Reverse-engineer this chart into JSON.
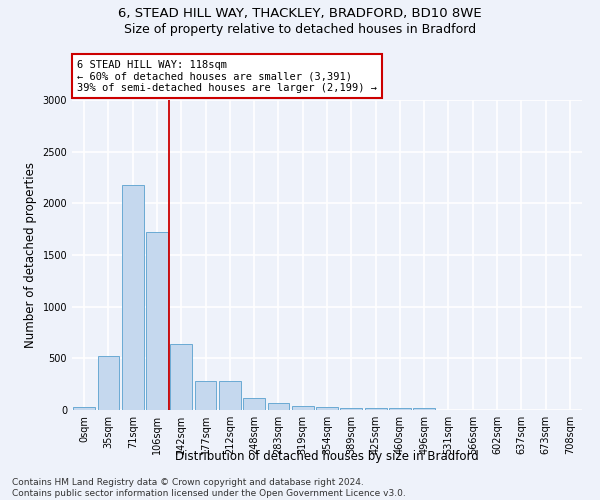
{
  "title_line1": "6, STEAD HILL WAY, THACKLEY, BRADFORD, BD10 8WE",
  "title_line2": "Size of property relative to detached houses in Bradford",
  "xlabel": "Distribution of detached houses by size in Bradford",
  "ylabel": "Number of detached properties",
  "categories": [
    "0sqm",
    "35sqm",
    "71sqm",
    "106sqm",
    "142sqm",
    "177sqm",
    "212sqm",
    "248sqm",
    "283sqm",
    "319sqm",
    "354sqm",
    "389sqm",
    "425sqm",
    "460sqm",
    "496sqm",
    "531sqm",
    "566sqm",
    "602sqm",
    "637sqm",
    "673sqm",
    "708sqm"
  ],
  "values": [
    30,
    520,
    2175,
    1720,
    640,
    280,
    280,
    120,
    70,
    35,
    25,
    20,
    20,
    20,
    20,
    0,
    0,
    0,
    0,
    0,
    0
  ],
  "bar_color": "#c5d8ee",
  "bar_edge_color": "#6aaad4",
  "ylim": [
    0,
    3000
  ],
  "yticks": [
    0,
    500,
    1000,
    1500,
    2000,
    2500,
    3000
  ],
  "vline_color": "#cc0000",
  "annotation_text": "6 STEAD HILL WAY: 118sqm\n← 60% of detached houses are smaller (3,391)\n39% of semi-detached houses are larger (2,199) →",
  "annotation_box_color": "white",
  "annotation_box_edge_color": "#cc0000",
  "background_color": "#eef2fa",
  "grid_color": "white",
  "footer_line1": "Contains HM Land Registry data © Crown copyright and database right 2024.",
  "footer_line2": "Contains public sector information licensed under the Open Government Licence v3.0.",
  "title_fontsize": 9.5,
  "subtitle_fontsize": 9,
  "axis_label_fontsize": 8.5,
  "tick_fontsize": 7,
  "annotation_fontsize": 7.5,
  "footer_fontsize": 6.5
}
